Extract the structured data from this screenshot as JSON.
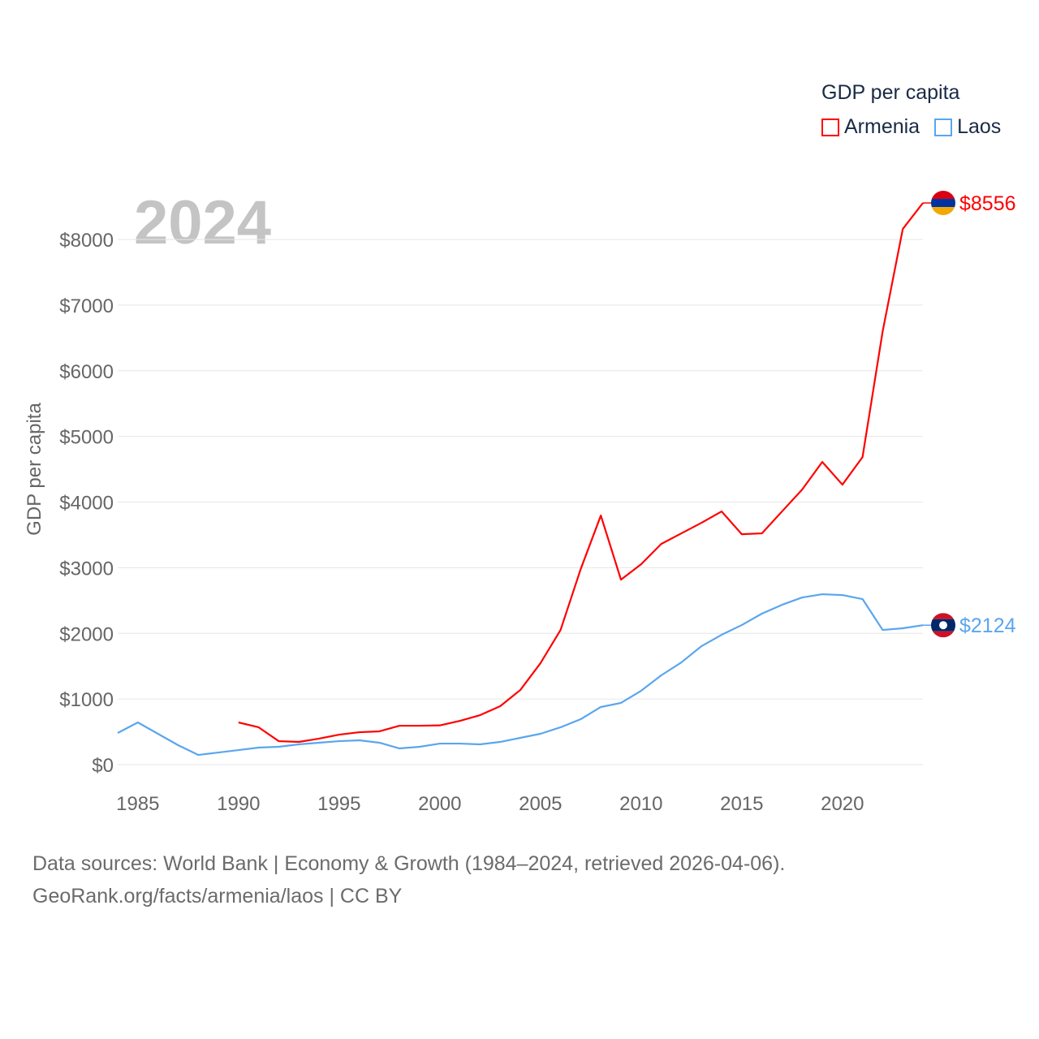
{
  "chart_data": {
    "type": "line",
    "title": "GDP per capita",
    "year_label": "2024",
    "xlabel": "",
    "ylabel": "GDP per capita",
    "xlim": [
      1984,
      2024
    ],
    "ylim": [
      0,
      8000
    ],
    "x_ticks": [
      1985,
      1990,
      1995,
      2000,
      2005,
      2010,
      2015,
      2020
    ],
    "y_ticks": [
      0,
      1000,
      2000,
      3000,
      4000,
      5000,
      6000,
      7000,
      8000
    ],
    "y_tick_labels": [
      "$0",
      "$1000",
      "$2000",
      "$3000",
      "$4000",
      "$5000",
      "$6000",
      "$7000",
      "$8000"
    ],
    "grid": true,
    "legend_placement": "top-right",
    "series": [
      {
        "name": "Armenia",
        "color": "#ff0000",
        "end_label": "$8556",
        "x": [
          1990,
          1991,
          1992,
          1993,
          1994,
          1995,
          1996,
          1997,
          1998,
          1999,
          2000,
          2001,
          2002,
          2003,
          2004,
          2005,
          2006,
          2007,
          2008,
          2009,
          2010,
          2011,
          2012,
          2013,
          2014,
          2015,
          2016,
          2017,
          2018,
          2019,
          2020,
          2021,
          2022,
          2023,
          2024
        ],
        "values": [
          643,
          569,
          358,
          346,
          396,
          457,
          494,
          507,
          593,
          593,
          598,
          667,
          754,
          890,
          1137,
          1545,
          2052,
          2979,
          3795,
          2818,
          3053,
          3362,
          3523,
          3684,
          3857,
          3510,
          3523,
          3857,
          4190,
          4611,
          4265,
          4685,
          6600,
          8160,
          8556
        ]
      },
      {
        "name": "Laos",
        "color": "#5aa6ee",
        "end_label": "$2124",
        "x": [
          1984,
          1985,
          1986,
          1987,
          1988,
          1989,
          1990,
          1991,
          1992,
          1993,
          1994,
          1995,
          1996,
          1997,
          1998,
          1999,
          2000,
          2001,
          2002,
          2003,
          2004,
          2005,
          2006,
          2007,
          2008,
          2009,
          2010,
          2011,
          2012,
          2013,
          2014,
          2015,
          2016,
          2017,
          2018,
          2019,
          2020,
          2021,
          2022,
          2023,
          2024
        ],
        "values": [
          482,
          643,
          470,
          297,
          148,
          185,
          222,
          260,
          272,
          309,
          334,
          358,
          371,
          334,
          247,
          272,
          321,
          321,
          309,
          346,
          408,
          470,
          569,
          692,
          878,
          940,
          1125,
          1360,
          1557,
          1805,
          1978,
          2126,
          2300,
          2435,
          2546,
          2596,
          2583,
          2522,
          2052,
          2077,
          2124
        ]
      }
    ]
  },
  "source": {
    "line1": "Data sources: World Bank | Economy & Growth (1984–2024, retrieved 2026-04-06).",
    "line2": "GeoRank.org/facts/armenia/laos | CC BY"
  }
}
